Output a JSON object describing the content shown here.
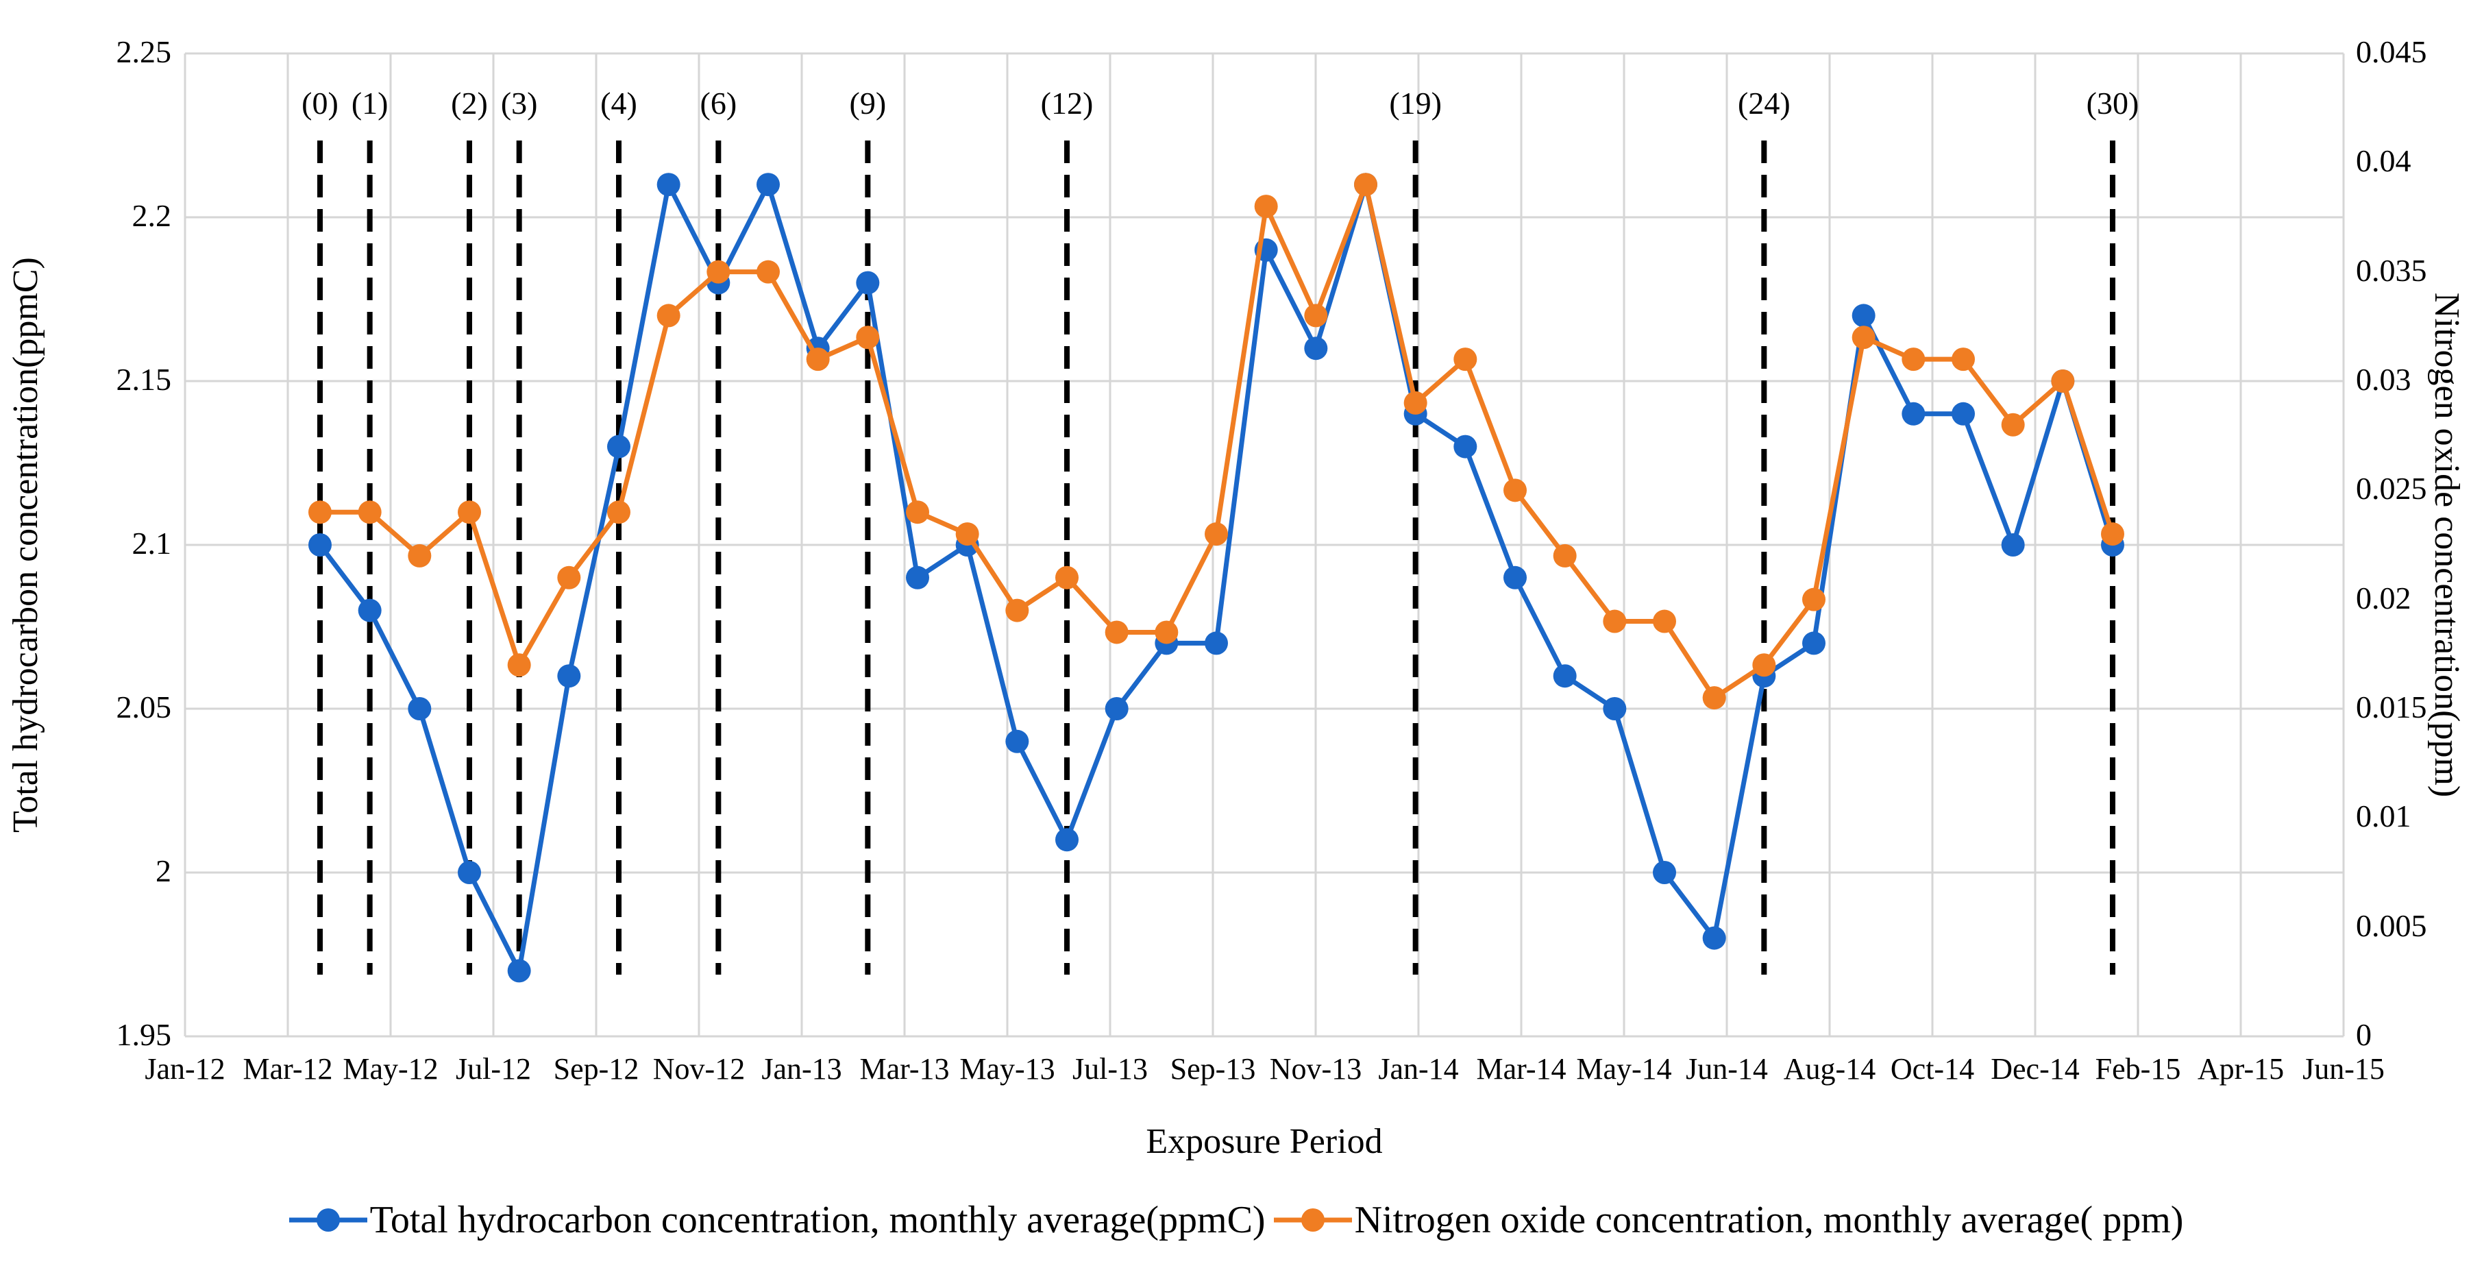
{
  "chart_data": {
    "type": "line",
    "title": "",
    "xlabel": "Exposure Period",
    "ylabel_left": "Total hydrocarbon concentration(ppmC)",
    "ylabel_right": "Nitrogen oxide concentration(ppm)",
    "x_tick_labels": [
      "Jan-12",
      "Mar-12",
      "May-12",
      "Jul-12",
      "Sep-12",
      "Nov-12",
      "Jan-13",
      "Mar-13",
      "May-13",
      "Jul-13",
      "Sep-13",
      "Nov-13",
      "Jan-14",
      "Mar-14",
      "May-14",
      "Jun-14",
      "Aug-14",
      "Oct-14",
      "Dec-14",
      "Feb-15",
      "Apr-15",
      "Jun-15"
    ],
    "y_left_ticks": [
      "2.25",
      "2.2",
      "2.15",
      "2.1",
      "2.05",
      "2",
      "1.95"
    ],
    "y_right_ticks": [
      "0.045",
      "0.04",
      "0.035",
      "0.03",
      "0.025",
      "0.02",
      "0.015",
      "0.01",
      "0.005",
      "0"
    ],
    "y_left_range": [
      1.95,
      2.25
    ],
    "y_right_range": [
      0,
      0.045
    ],
    "grid": true,
    "legend_position": "bottom",
    "series": [
      {
        "name": "Total hydrocarbon concentration, monthly average(ppmC)",
        "axis": "left",
        "color": "#1A67C9",
        "values": [
          2.1,
          2.08,
          2.05,
          2.0,
          1.97,
          2.06,
          2.13,
          2.21,
          2.18,
          2.21,
          2.16,
          2.18,
          2.09,
          2.1,
          2.04,
          2.01,
          2.05,
          2.07,
          2.07,
          2.19,
          2.16,
          2.21,
          2.14,
          2.13,
          2.09,
          2.06,
          2.05,
          2.0,
          1.98,
          2.06,
          2.07,
          2.17,
          2.14,
          2.14,
          2.1,
          2.15,
          2.1
        ]
      },
      {
        "name": "Nitrogen oxide concentration, monthly average( ppm)",
        "axis": "right",
        "color": "#F07D22",
        "values": [
          0.024,
          0.024,
          0.022,
          0.024,
          0.017,
          0.021,
          0.024,
          0.033,
          0.035,
          0.035,
          0.031,
          0.032,
          0.024,
          0.023,
          0.0195,
          0.021,
          0.0185,
          0.0185,
          0.023,
          0.038,
          0.033,
          0.039,
          0.029,
          0.031,
          0.025,
          0.022,
          0.019,
          0.019,
          0.0155,
          0.017,
          0.02,
          0.032,
          0.031,
          0.031,
          0.028,
          0.03,
          0.023
        ]
      }
    ],
    "exposure_markers": [
      {
        "label": "(0)",
        "point_index": 0
      },
      {
        "label": "(1)",
        "point_index": 1
      },
      {
        "label": "(2)",
        "point_index": 3
      },
      {
        "label": "(3)",
        "point_index": 4
      },
      {
        "label": "(4)",
        "point_index": 6
      },
      {
        "label": "(6)",
        "point_index": 8
      },
      {
        "label": "(9)",
        "point_index": 11
      },
      {
        "label": "(12)",
        "point_index": 15
      },
      {
        "label": "(19)",
        "point_index": 22
      },
      {
        "label": "(24)",
        "point_index": 29
      },
      {
        "label": "(30)",
        "point_index": 36
      }
    ]
  }
}
